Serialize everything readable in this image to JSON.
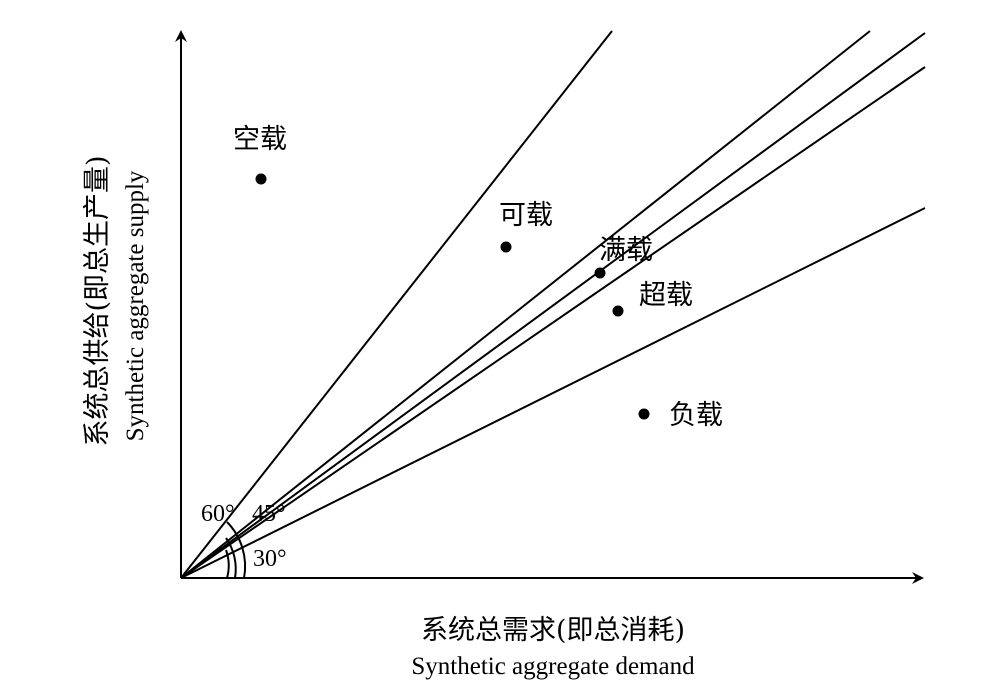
{
  "axes": {
    "x_label_cn": "系统总需求(即总消耗)",
    "x_label_en": "Synthetic aggregate demand",
    "y_label_cn": "系统总供给(即总生产量)",
    "y_label_en": "Synthetic aggregate supply"
  },
  "angles": {
    "a60": "60°",
    "a45": "45°",
    "a30": "30°"
  },
  "points": [
    {
      "id": "kongzai",
      "label": "空载"
    },
    {
      "id": "kezai",
      "label": "可载"
    },
    {
      "id": "manzai",
      "label": "满载"
    },
    {
      "id": "chaozai",
      "label": "超载"
    },
    {
      "id": "fuzai",
      "label": "负载"
    }
  ]
}
